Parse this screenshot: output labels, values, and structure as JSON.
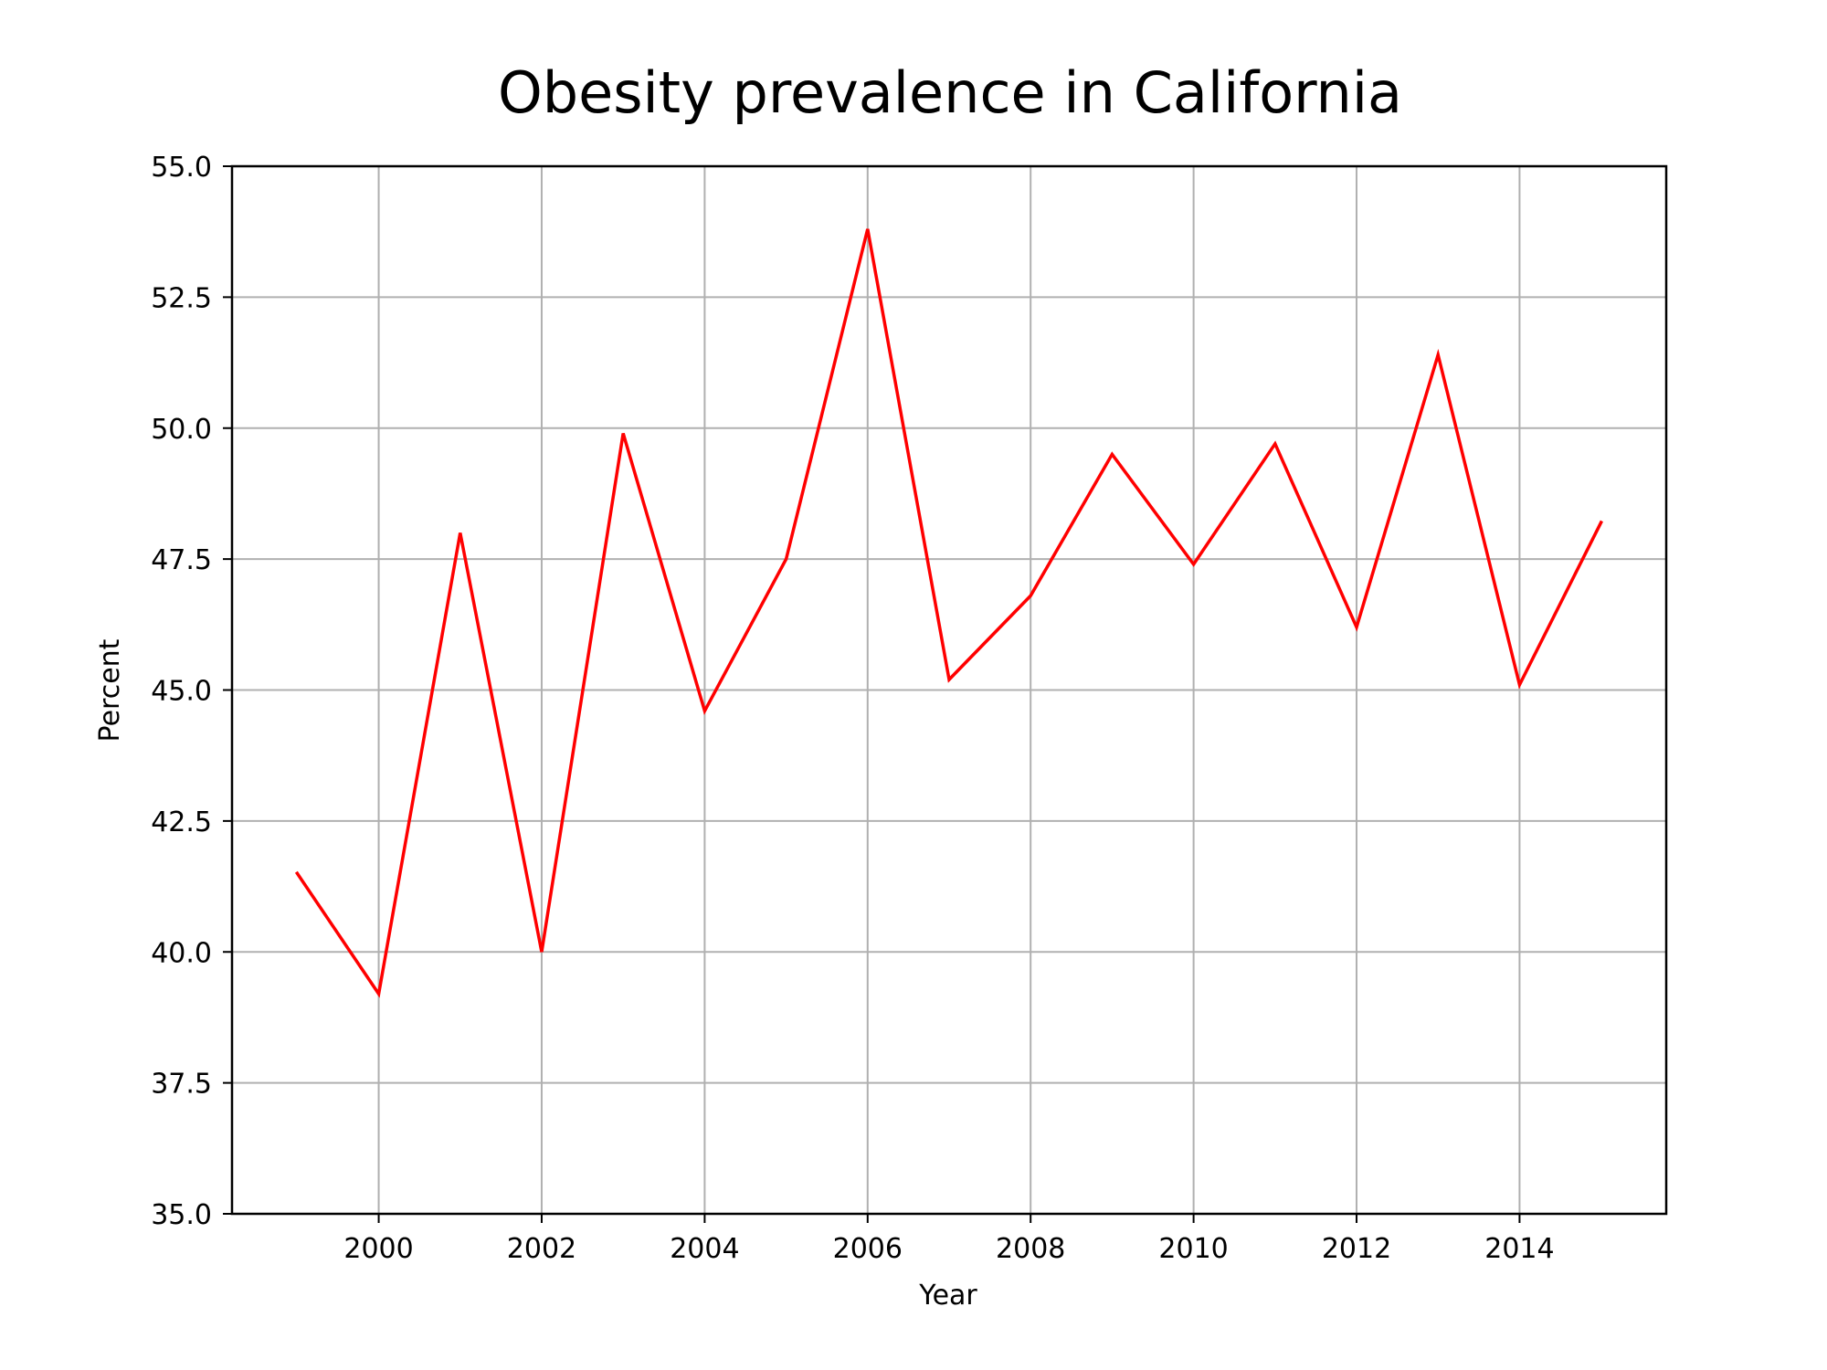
{
  "chart_data": {
    "type": "line",
    "title": "Obesity prevalence in California",
    "xlabel": "Year",
    "ylabel": "Percent",
    "xlim": [
      1998.2,
      2015.8
    ],
    "ylim": [
      35.0,
      55.0
    ],
    "xticks": [
      2000,
      2002,
      2004,
      2006,
      2008,
      2010,
      2012,
      2014
    ],
    "yticks": [
      35.0,
      37.5,
      40.0,
      42.5,
      45.0,
      47.5,
      50.0,
      52.5,
      55.0
    ],
    "ytick_labels": [
      "35.0",
      "37.5",
      "40.0",
      "42.5",
      "45.0",
      "47.5",
      "50.0",
      "52.5",
      "55.0"
    ],
    "grid": true,
    "series": [
      {
        "color": "#ff0000",
        "x": [
          1999,
          2000,
          2001,
          2002,
          2003,
          2004,
          2005,
          2006,
          2007,
          2008,
          2009,
          2010,
          2011,
          2012,
          2013,
          2014,
          2015
        ],
        "y": [
          41.5,
          39.2,
          48.0,
          40.0,
          49.9,
          44.6,
          47.5,
          53.8,
          45.2,
          46.8,
          49.5,
          47.4,
          49.7,
          46.2,
          51.4,
          45.1,
          48.2
        ]
      }
    ]
  }
}
